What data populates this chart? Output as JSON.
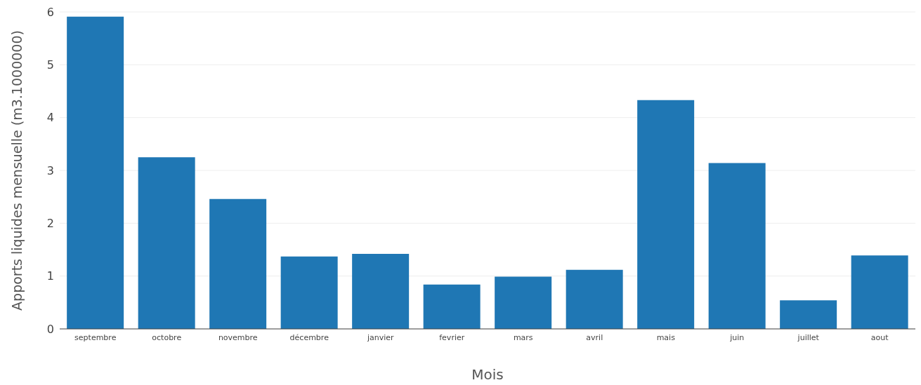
{
  "chart_data": {
    "type": "bar",
    "xlabel": "Mois",
    "ylabel": "Apports liquides mensuelle (m3.1000000)",
    "categories": [
      "septembre",
      "octobre",
      "novembre",
      "décembre",
      "janvier",
      "fevrier",
      "mars",
      "avril",
      "mais",
      "juin",
      "juillet",
      "aout"
    ],
    "values": [
      5.91,
      3.25,
      2.46,
      1.37,
      1.42,
      0.84,
      0.99,
      1.12,
      4.33,
      3.14,
      0.54,
      1.39
    ],
    "color": "#1f77b4",
    "ylim": [
      0,
      6
    ],
    "yticks": [
      0,
      1,
      2,
      3,
      4,
      5,
      6
    ],
    "grid": "y"
  }
}
